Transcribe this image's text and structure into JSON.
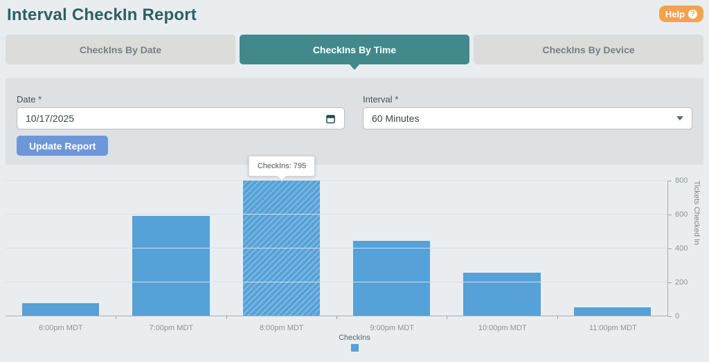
{
  "header": {
    "title": "Interval CheckIn Report",
    "help_button": {
      "label": "Help",
      "icon": "?"
    }
  },
  "tabs": [
    {
      "label": "CheckIns By Date",
      "active": false
    },
    {
      "label": "CheckIns By Time",
      "active": true
    },
    {
      "label": "CheckIns By Device",
      "active": false
    }
  ],
  "filters": {
    "date": {
      "label": "Date *",
      "value": "10/17/2025"
    },
    "interval": {
      "label": "Interval *",
      "value": "60 Minutes"
    },
    "update_button": "Update Report"
  },
  "chart_data": {
    "type": "bar",
    "categories": [
      "6:00pm MDT",
      "7:00pm MDT",
      "8:00pm MDT",
      "9:00pm MDT",
      "10:00pm MDT",
      "11:00pm MDT"
    ],
    "values": [
      72,
      587,
      795,
      440,
      253,
      48
    ],
    "series_name": "CheckIns",
    "ylabel": "Tickets Checked In",
    "ylim": [
      0,
      800
    ],
    "yticks": [
      0,
      200,
      400,
      600,
      800
    ],
    "grid": true,
    "legend": {
      "label": "CheckIns",
      "position": "bottom-center"
    },
    "highlighted_index": 2,
    "tooltip": {
      "text": "CheckIns: 795",
      "category": "8:00pm MDT",
      "value": 795
    }
  },
  "colors": {
    "page_bg": "#e9edf0",
    "panel_bg": "#dee1e4",
    "title_text": "#2d605e",
    "active_tab": "#41898b",
    "inactive_tab": "#dcdcdb",
    "help_button": "#f2a44d",
    "update_button": "#6e97d9",
    "bar": "#55a1d8",
    "bar_hatch": "#7fb9e2"
  }
}
